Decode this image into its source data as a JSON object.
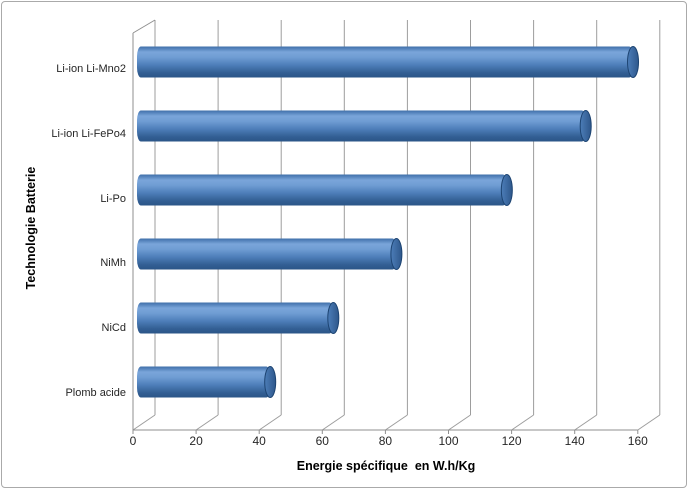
{
  "chart_data": {
    "type": "bar",
    "orientation": "horizontal",
    "style": "3d-cylinder",
    "categories": [
      "Li-ion Li-Mno2",
      "Li-ion Li-FePo4",
      "Li-Po",
      "NiMh",
      "NiCd",
      "Plomb acide"
    ],
    "values": [
      155,
      140,
      115,
      80,
      60,
      40
    ],
    "xlabel": "Energie spécifique  en W.h/Kg",
    "ylabel": "Technologie Batterie",
    "x_ticks": [
      0,
      20,
      40,
      60,
      80,
      100,
      120,
      140,
      160
    ],
    "xlim": [
      0,
      160
    ],
    "grid": true,
    "legend": "none",
    "colors": {
      "bar_base": "#4f81bd",
      "bar_highlight": "#7aa5da",
      "bar_shadow": "#2b5587",
      "bar_cap_rim": "#1d4472",
      "gridline": "#9d9d9d",
      "axis_line": "#8f8f8f",
      "label_text": "#262626",
      "title_text": "#000000",
      "frame_border": "#aaaaaa",
      "background": "#ffffff"
    }
  }
}
